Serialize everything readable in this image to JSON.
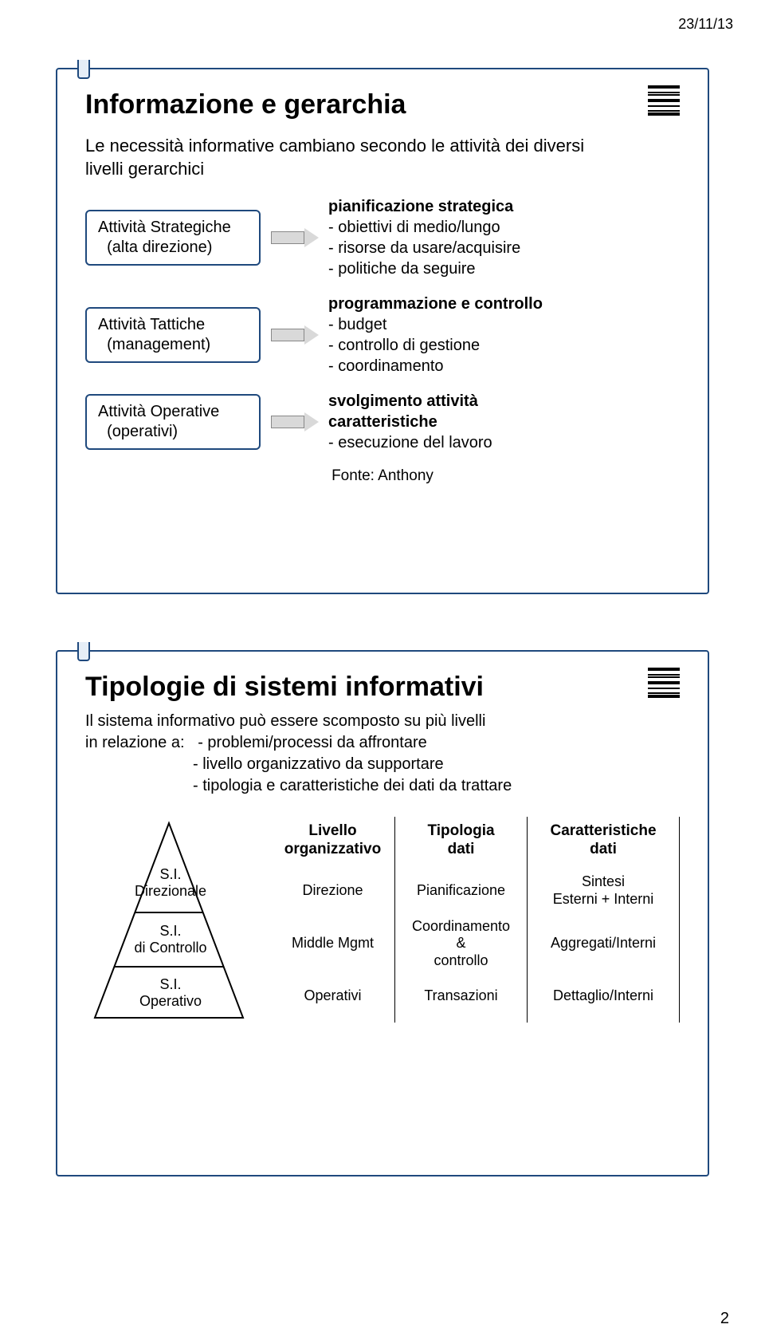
{
  "meta": {
    "date": "23/11/13",
    "page_number": "2"
  },
  "slide1": {
    "title": "Informazione e gerarchia",
    "subtitle_l1": "Le necessità informative cambiano secondo le attività dei diversi",
    "subtitle_l2": "livelli gerarchici",
    "rows": [
      {
        "box_l1": "Attività Strategiche",
        "box_l2": "(alta direzione)",
        "heading": "pianificazione strategica",
        "items": [
          "- obiettivi di medio/lungo",
          "- risorse da usare/acquisire",
          "- politiche da seguire"
        ]
      },
      {
        "box_l1": "Attività Tattiche",
        "box_l2": "(management)",
        "heading": "programmazione e controllo",
        "items": [
          "- budget",
          "- controllo di gestione",
          "- coordinamento"
        ]
      },
      {
        "box_l1": "Attività Operative",
        "box_l2": "(operativi)",
        "heading_l1": "svolgimento attività",
        "heading_l2": "caratteristiche",
        "items": [
          "- esecuzione del lavoro"
        ]
      }
    ],
    "source": "Fonte: Anthony"
  },
  "slide2": {
    "title": "Tipologie di sistemi informativi",
    "body_l1": "Il sistema informativo può essere scomposto su più livelli",
    "body_l2a": "in relazione a:",
    "body_l2b": "- problemi/processi da affrontare",
    "body_l3": "- livello organizzativo da supportare",
    "body_l4": "- tipologia e caratteristiche dei dati da trattare",
    "triangle": [
      "S.I.\nDirezionale",
      "S.I.\ndi Controllo",
      "S.I.\nOperativo"
    ],
    "table": {
      "columns": [
        {
          "header": "Livello\norganizzativo",
          "rows": [
            "Direzione",
            "Middle Mgmt",
            "Operativi"
          ]
        },
        {
          "header": "Tipologia\ndati",
          "rows": [
            "Pianificazione",
            "Coordinamento\n&\ncontrollo",
            "Transazioni"
          ]
        },
        {
          "header": "Caratteristiche\ndati",
          "rows": [
            "Sintesi\nEsterni + Interni",
            "Aggregati/Interni",
            "Dettaglio/Interni"
          ]
        }
      ]
    }
  }
}
